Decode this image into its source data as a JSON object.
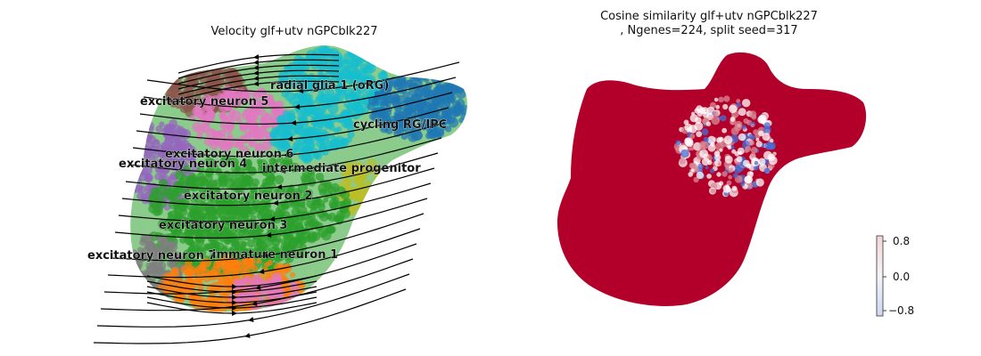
{
  "colors": {
    "radial glia 1 (oRG)": "#17becf",
    "cycling RG/IPC": "#1f77b4",
    "intermediate progenitor": "#bcbd22",
    "excitatory neuron 6": "#e377c2",
    "excitatory neuron 5": "#8c564b",
    "excitatory neuron 4": "#9467bd",
    "excitatory neuron 2": "#2ca02c",
    "excitatory neuron 3": "#2ca02c",
    "excitatory neuron 7": "#7f7f7f",
    "immature neuron 1": "#ff7f0e",
    "cosine_high": "#b2002a",
    "cosine_low": "#4a6fd6"
  },
  "chart_data": [
    {
      "type": "scatter",
      "title": "Velocity glf+utv nGPCblk227",
      "xlabel": "",
      "ylabel": "",
      "grid": false,
      "legend": "on data",
      "cluster_labels": [
        "radial glia 1 (oRG)",
        "excitatory neuron 5",
        "cycling RG/IPC",
        "excitatory neuron 6",
        "excitatory neuron 4",
        "intermediate progenitor",
        "excitatory neuron 2",
        "excitatory neuron 3",
        "excitatory neuron 7",
        "immature neuron 1"
      ],
      "overlay": "velocity streamlines"
    },
    {
      "type": "scatter",
      "title": "Cosine similarity glf+utv nGPCblk227",
      "subtitle": ", Ngenes=224, split seed=317",
      "xlabel": "",
      "ylabel": "",
      "grid": false,
      "colorbar": {
        "ticks": [
          "0.8",
          "0.0",
          "−0.8"
        ],
        "range": [
          -1,
          1
        ]
      }
    }
  ],
  "left_title": "Velocity glf+utv nGPCblk227",
  "right_title_line1": "Cosine similarity glf+utv nGPCblk227",
  "right_title_line2": ", Ngenes=224, split seed=317"
}
